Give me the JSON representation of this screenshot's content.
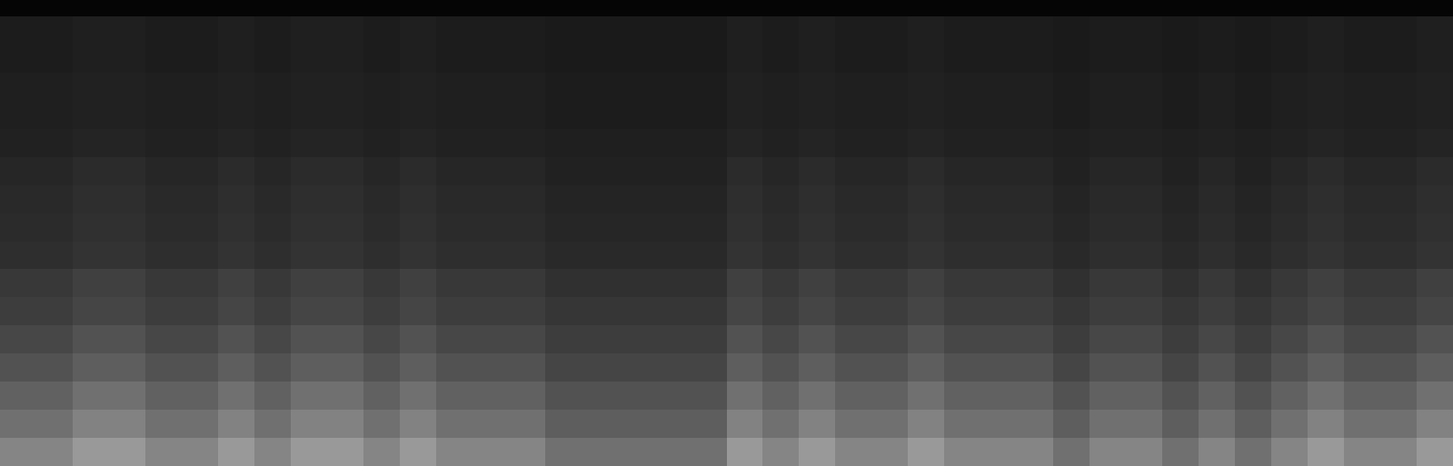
{
  "chart_data": {
    "type": "heatmap",
    "tick_labels": false,
    "color": "#ffffff",
    "zlim": [
      0,
      100
    ],
    "cells": [
      [
        11,
        11,
        12,
        12,
        11,
        11,
        12,
        11,
        12,
        12,
        11,
        12,
        11,
        11,
        11,
        10,
        10,
        10,
        10,
        10,
        12,
        11,
        12,
        11,
        11,
        12,
        11,
        11,
        11,
        10,
        11,
        11,
        10,
        11,
        10,
        11,
        12,
        11,
        11,
        12
      ],
      [
        11,
        11,
        12,
        12,
        11,
        11,
        12,
        11,
        12,
        12,
        11,
        12,
        11,
        11,
        11,
        10,
        10,
        10,
        10,
        10,
        12,
        11,
        12,
        11,
        11,
        12,
        11,
        11,
        11,
        10,
        11,
        11,
        10,
        11,
        10,
        11,
        12,
        11,
        11,
        12
      ],
      [
        12,
        12,
        13,
        13,
        12,
        12,
        13,
        12,
        13,
        13,
        12,
        13,
        12,
        12,
        12,
        11,
        11,
        11,
        11,
        11,
        13,
        12,
        13,
        12,
        12,
        13,
        12,
        12,
        12,
        11,
        12,
        12,
        11,
        12,
        11,
        12,
        13,
        12,
        12,
        13
      ],
      [
        12,
        12,
        13,
        13,
        12,
        12,
        13,
        12,
        13,
        13,
        12,
        13,
        12,
        12,
        12,
        11,
        11,
        11,
        11,
        11,
        13,
        12,
        13,
        12,
        12,
        13,
        12,
        12,
        12,
        11,
        12,
        12,
        11,
        12,
        11,
        12,
        13,
        12,
        12,
        13
      ],
      [
        13,
        13,
        14,
        14,
        13,
        13,
        14,
        13,
        14,
        14,
        13,
        14,
        13,
        13,
        13,
        12,
        12,
        12,
        12,
        12,
        14,
        13,
        14,
        13,
        13,
        14,
        13,
        13,
        13,
        12,
        13,
        13,
        12,
        13,
        12,
        13,
        14,
        13,
        13,
        14
      ],
      [
        15,
        15,
        17,
        17,
        15,
        15,
        17,
        15,
        17,
        17,
        15,
        17,
        15,
        15,
        15,
        13,
        13,
        13,
        13,
        13,
        17,
        15,
        17,
        15,
        15,
        17,
        15,
        15,
        15,
        13,
        15,
        15,
        13,
        15,
        13,
        15,
        17,
        15,
        15,
        17
      ],
      [
        16,
        16,
        18,
        18,
        16,
        16,
        18,
        16,
        18,
        18,
        16,
        18,
        16,
        16,
        16,
        14,
        14,
        14,
        14,
        14,
        18,
        16,
        18,
        16,
        16,
        18,
        16,
        16,
        16,
        14,
        16,
        16,
        14,
        16,
        14,
        16,
        18,
        16,
        16,
        18
      ],
      [
        17,
        17,
        19,
        19,
        17,
        17,
        19,
        17,
        19,
        19,
        17,
        19,
        17,
        17,
        17,
        15,
        15,
        15,
        15,
        15,
        19,
        17,
        19,
        17,
        17,
        19,
        17,
        17,
        17,
        15,
        17,
        17,
        15,
        17,
        15,
        17,
        19,
        17,
        17,
        19
      ],
      [
        18,
        18,
        20,
        20,
        18,
        18,
        20,
        18,
        20,
        20,
        18,
        20,
        18,
        18,
        18,
        16,
        16,
        16,
        16,
        16,
        20,
        18,
        20,
        18,
        18,
        20,
        18,
        18,
        18,
        16,
        18,
        18,
        16,
        18,
        16,
        18,
        20,
        18,
        18,
        20
      ],
      [
        22,
        22,
        25,
        25,
        22,
        22,
        25,
        22,
        25,
        25,
        22,
        25,
        22,
        22,
        22,
        19,
        19,
        19,
        19,
        19,
        25,
        22,
        25,
        22,
        22,
        25,
        22,
        22,
        22,
        19,
        22,
        22,
        19,
        22,
        19,
        22,
        25,
        22,
        22,
        25
      ],
      [
        24,
        24,
        27,
        27,
        24,
        24,
        27,
        24,
        27,
        27,
        24,
        27,
        24,
        24,
        24,
        21,
        21,
        21,
        21,
        21,
        27,
        24,
        27,
        24,
        24,
        27,
        24,
        24,
        24,
        21,
        24,
        24,
        21,
        24,
        21,
        24,
        27,
        24,
        24,
        27
      ],
      [
        28,
        28,
        32,
        32,
        28,
        28,
        32,
        28,
        32,
        32,
        28,
        32,
        28,
        28,
        28,
        24,
        24,
        24,
        24,
        24,
        32,
        28,
        32,
        28,
        28,
        32,
        28,
        28,
        28,
        24,
        28,
        28,
        24,
        28,
        24,
        28,
        32,
        28,
        28,
        32
      ],
      [
        32,
        32,
        37,
        37,
        32,
        32,
        37,
        32,
        37,
        37,
        32,
        37,
        32,
        32,
        32,
        27,
        27,
        27,
        27,
        27,
        37,
        32,
        37,
        32,
        32,
        37,
        32,
        32,
        32,
        27,
        32,
        32,
        27,
        32,
        27,
        32,
        37,
        32,
        32,
        37
      ],
      [
        38,
        38,
        44,
        44,
        38,
        38,
        44,
        38,
        44,
        44,
        38,
        44,
        38,
        38,
        38,
        32,
        32,
        32,
        32,
        32,
        44,
        38,
        44,
        38,
        38,
        44,
        38,
        38,
        38,
        32,
        38,
        38,
        32,
        38,
        32,
        38,
        44,
        38,
        38,
        44
      ],
      [
        44,
        44,
        51,
        51,
        44,
        44,
        51,
        44,
        51,
        51,
        44,
        51,
        44,
        44,
        44,
        37,
        37,
        37,
        37,
        37,
        51,
        44,
        51,
        44,
        44,
        51,
        44,
        44,
        44,
        37,
        44,
        44,
        37,
        44,
        37,
        44,
        51,
        44,
        44,
        51
      ],
      [
        52,
        52,
        60,
        60,
        52,
        52,
        60,
        52,
        60,
        60,
        52,
        60,
        52,
        52,
        52,
        44,
        44,
        44,
        44,
        44,
        60,
        52,
        60,
        52,
        52,
        60,
        52,
        52,
        52,
        44,
        52,
        52,
        44,
        52,
        44,
        52,
        60,
        52,
        52,
        60
      ]
    ]
  }
}
